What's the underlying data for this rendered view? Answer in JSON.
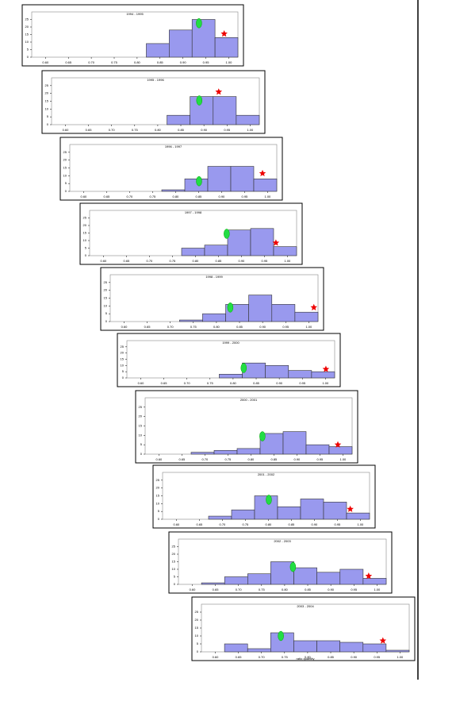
{
  "chart_data": [
    {
      "type": "histogram",
      "title": "1994 - 1995",
      "bins": [
        0.57,
        0.62,
        0.67,
        0.72,
        0.77,
        0.82,
        0.87,
        0.92,
        0.97,
        1.02
      ],
      "values": [
        0,
        0,
        0,
        0,
        0,
        9,
        18,
        25,
        13
      ],
      "color": "#9999ee",
      "xlim": [
        0.57,
        1.02
      ],
      "xticks": [
        {
          "value": 0.6,
          "label": "0.60"
        },
        {
          "value": 0.65,
          "label": "0.65"
        },
        {
          "value": 0.7,
          "label": "0.70"
        },
        {
          "value": 0.75,
          "label": "0.75"
        },
        {
          "value": 0.8,
          "label": "0.80"
        },
        {
          "value": 0.85,
          "label": "0.85"
        },
        {
          "value": 0.9,
          "label": "0.90"
        },
        {
          "value": 0.95,
          "label": "0.95"
        },
        {
          "value": 1,
          "label": "1.00"
        }
      ],
      "ylim": [
        0,
        30
      ],
      "yticks": [
        0,
        5,
        10,
        15,
        20,
        25
      ],
      "circle": [
        0.935,
        22.5
      ],
      "circle_color": "#22dd44",
      "star": [
        0.99,
        15.5
      ],
      "star_color": "#ee0000"
    },
    {
      "type": "histogram",
      "title": "1995 - 1996",
      "bins": [
        0.57,
        0.62,
        0.67,
        0.72,
        0.77,
        0.82,
        0.87,
        0.92,
        0.97,
        1.02
      ],
      "values": [
        0,
        0,
        0,
        0,
        0,
        6,
        18,
        18,
        6
      ],
      "color": "#9999ee",
      "xlim": [
        0.57,
        1.02
      ],
      "xticks": [
        {
          "value": 0.6,
          "label": "0.60"
        },
        {
          "value": 0.65,
          "label": "0.65"
        },
        {
          "value": 0.7,
          "label": "0.70"
        },
        {
          "value": 0.75,
          "label": "0.75"
        },
        {
          "value": 0.8,
          "label": "0.80"
        },
        {
          "value": 0.85,
          "label": "0.85"
        },
        {
          "value": 0.9,
          "label": "0.90"
        },
        {
          "value": 0.95,
          "label": "0.95"
        },
        {
          "value": 1,
          "label": "1.00"
        }
      ],
      "ylim": [
        0,
        30
      ],
      "yticks": [
        0,
        5,
        10,
        15,
        20,
        25
      ],
      "circle": [
        0.89,
        15.5
      ],
      "circle_color": "#22dd44",
      "star": [
        0.932,
        21
      ],
      "star_color": "#ee0000"
    },
    {
      "type": "histogram",
      "title": "1996 - 1997",
      "bins": [
        0.57,
        0.62,
        0.67,
        0.72,
        0.77,
        0.82,
        0.87,
        0.92,
        0.97,
        1.02
      ],
      "values": [
        0,
        0,
        0,
        0,
        1,
        8,
        16,
        16,
        8
      ],
      "color": "#9999ee",
      "xlim": [
        0.57,
        1.02
      ],
      "xticks": [
        {
          "value": 0.6,
          "label": "0.60"
        },
        {
          "value": 0.65,
          "label": "0.65"
        },
        {
          "value": 0.7,
          "label": "0.70"
        },
        {
          "value": 0.75,
          "label": "0.75"
        },
        {
          "value": 0.8,
          "label": "0.80"
        },
        {
          "value": 0.85,
          "label": "0.85"
        },
        {
          "value": 0.9,
          "label": "0.90"
        },
        {
          "value": 0.95,
          "label": "0.95"
        },
        {
          "value": 1,
          "label": "1.00"
        }
      ],
      "ylim": [
        0,
        30
      ],
      "yticks": [
        0,
        5,
        10,
        15,
        20,
        25
      ],
      "circle": [
        0.851,
        6.5
      ],
      "circle_color": "#22dd44",
      "star": [
        0.989,
        11.5
      ],
      "star_color": "#ee0000"
    },
    {
      "type": "histogram",
      "title": "1997 - 1998",
      "bins": [
        0.57,
        0.62,
        0.67,
        0.72,
        0.77,
        0.82,
        0.87,
        0.92,
        0.97,
        1.02
      ],
      "values": [
        0,
        0,
        0,
        0,
        5,
        7,
        17,
        18,
        6
      ],
      "color": "#9999ee",
      "xlim": [
        0.57,
        1.02
      ],
      "xticks": [
        {
          "value": 0.6,
          "label": "0.60"
        },
        {
          "value": 0.65,
          "label": "0.65"
        },
        {
          "value": 0.7,
          "label": "0.70"
        },
        {
          "value": 0.75,
          "label": "0.75"
        },
        {
          "value": 0.8,
          "label": "0.80"
        },
        {
          "value": 0.85,
          "label": "0.85"
        },
        {
          "value": 0.9,
          "label": "0.90"
        },
        {
          "value": 0.95,
          "label": "0.95"
        },
        {
          "value": 1,
          "label": "1.00"
        }
      ],
      "ylim": [
        0,
        30
      ],
      "yticks": [
        0,
        5,
        10,
        15,
        20,
        25
      ],
      "circle": [
        0.868,
        14.5
      ],
      "circle_color": "#22dd44",
      "star": [
        0.975,
        8.5
      ],
      "star_color": "#ee0000"
    },
    {
      "type": "histogram",
      "title": "1998 - 1999",
      "bins": [
        0.57,
        0.62,
        0.67,
        0.72,
        0.77,
        0.82,
        0.87,
        0.92,
        0.97,
        1.02
      ],
      "values": [
        0,
        0,
        0,
        1,
        5,
        11,
        17,
        11,
        6
      ],
      "color": "#9999ee",
      "xlim": [
        0.57,
        1.02
      ],
      "xticks": [
        {
          "value": 0.6,
          "label": "0.60"
        },
        {
          "value": 0.65,
          "label": "0.65"
        },
        {
          "value": 0.7,
          "label": "0.70"
        },
        {
          "value": 0.75,
          "label": "0.75"
        },
        {
          "value": 0.8,
          "label": "0.80"
        },
        {
          "value": 0.85,
          "label": "0.85"
        },
        {
          "value": 0.9,
          "label": "0.90"
        },
        {
          "value": 0.95,
          "label": "0.95"
        },
        {
          "value": 1,
          "label": "1.00"
        }
      ],
      "ylim": [
        0,
        30
      ],
      "yticks": [
        0,
        5,
        10,
        15,
        20,
        25
      ],
      "circle": [
        0.83,
        9
      ],
      "circle_color": "#22dd44",
      "star": [
        1.011,
        9
      ],
      "star_color": "#ee0000"
    },
    {
      "type": "histogram",
      "title": "1999 - 2000",
      "bins": [
        0.57,
        0.62,
        0.67,
        0.72,
        0.77,
        0.82,
        0.87,
        0.92,
        0.97,
        1.02
      ],
      "values": [
        0,
        0,
        0,
        0,
        3,
        12,
        10,
        6,
        5
      ],
      "color": "#9999ee",
      "xlim": [
        0.57,
        1.02
      ],
      "xticks": [
        {
          "value": 0.6,
          "label": "0.60"
        },
        {
          "value": 0.65,
          "label": "0.65"
        },
        {
          "value": 0.7,
          "label": "0.70"
        },
        {
          "value": 0.75,
          "label": "0.75"
        },
        {
          "value": 0.8,
          "label": "0.80"
        },
        {
          "value": 0.85,
          "label": "0.85"
        },
        {
          "value": 0.9,
          "label": "0.90"
        },
        {
          "value": 0.95,
          "label": "0.95"
        },
        {
          "value": 1,
          "label": "1.00"
        }
      ],
      "ylim": [
        0,
        30
      ],
      "yticks": [
        0,
        5,
        10,
        15,
        20,
        25
      ],
      "circle": [
        0.823,
        8
      ],
      "circle_color": "#22dd44",
      "star": [
        1.001,
        7
      ],
      "star_color": "#ee0000"
    },
    {
      "type": "histogram",
      "title": "2000 - 2001",
      "bins": [
        0.57,
        0.62,
        0.67,
        0.72,
        0.77,
        0.82,
        0.87,
        0.92,
        0.97,
        1.02
      ],
      "values": [
        0,
        0,
        1,
        2,
        3,
        11,
        12,
        5,
        4
      ],
      "color": "#9999ee",
      "xlim": [
        0.57,
        1.02
      ],
      "xticks": [
        {
          "value": 0.6,
          "label": "0.60"
        },
        {
          "value": 0.65,
          "label": "0.65"
        },
        {
          "value": 0.7,
          "label": "0.70"
        },
        {
          "value": 0.75,
          "label": "0.75"
        },
        {
          "value": 0.8,
          "label": "0.80"
        },
        {
          "value": 0.85,
          "label": "0.85"
        },
        {
          "value": 0.9,
          "label": "0.90"
        },
        {
          "value": 0.95,
          "label": "0.95"
        },
        {
          "value": 1,
          "label": "1.00"
        }
      ],
      "ylim": [
        0,
        30
      ],
      "yticks": [
        0,
        5,
        10,
        15,
        20,
        25
      ],
      "circle": [
        0.825,
        9.5
      ],
      "circle_color": "#22dd44",
      "star": [
        0.989,
        5
      ],
      "star_color": "#ee0000"
    },
    {
      "type": "histogram",
      "title": "2001 - 2002",
      "bins": [
        0.57,
        0.62,
        0.67,
        0.72,
        0.77,
        0.82,
        0.87,
        0.92,
        0.97,
        1.02
      ],
      "values": [
        0,
        0,
        2,
        6,
        15,
        8,
        13,
        11,
        4
      ],
      "color": "#9999ee",
      "xlim": [
        0.57,
        1.02
      ],
      "xticks": [
        {
          "value": 0.6,
          "label": "0.60"
        },
        {
          "value": 0.65,
          "label": "0.65"
        },
        {
          "value": 0.7,
          "label": "0.70"
        },
        {
          "value": 0.75,
          "label": "0.75"
        },
        {
          "value": 0.8,
          "label": "0.80"
        },
        {
          "value": 0.85,
          "label": "0.85"
        },
        {
          "value": 0.9,
          "label": "0.90"
        },
        {
          "value": 0.95,
          "label": "0.95"
        },
        {
          "value": 1,
          "label": "1.00"
        }
      ],
      "ylim": [
        0,
        30
      ],
      "yticks": [
        0,
        5,
        10,
        15,
        20,
        25
      ],
      "circle": [
        0.801,
        12.5
      ],
      "circle_color": "#22dd44",
      "star": [
        0.978,
        6.5
      ],
      "star_color": "#ee0000"
    },
    {
      "type": "histogram",
      "title": "2002 - 2003",
      "bins": [
        0.57,
        0.62,
        0.67,
        0.72,
        0.77,
        0.82,
        0.87,
        0.92,
        0.97,
        1.02
      ],
      "values": [
        0,
        1,
        5,
        7,
        15,
        11,
        8,
        10,
        4
      ],
      "color": "#9999ee",
      "xlim": [
        0.57,
        1.02
      ],
      "xticks": [
        {
          "value": 0.6,
          "label": "0.60"
        },
        {
          "value": 0.65,
          "label": "0.65"
        },
        {
          "value": 0.7,
          "label": "0.70"
        },
        {
          "value": 0.75,
          "label": "0.75"
        },
        {
          "value": 0.8,
          "label": "0.80"
        },
        {
          "value": 0.85,
          "label": "0.85"
        },
        {
          "value": 0.9,
          "label": "0.90"
        },
        {
          "value": 0.95,
          "label": "0.95"
        },
        {
          "value": 1,
          "label": "1.00"
        }
      ],
      "ylim": [
        0,
        30
      ],
      "yticks": [
        0,
        5,
        10,
        15,
        20,
        25
      ],
      "circle": [
        0.818,
        11.5
      ],
      "circle_color": "#22dd44",
      "star": [
        0.982,
        5.5
      ],
      "star_color": "#ee0000"
    },
    {
      "type": "histogram",
      "title": "2003 - 2004",
      "bins": [
        0.57,
        0.62,
        0.67,
        0.72,
        0.77,
        0.82,
        0.87,
        0.92,
        0.97,
        1.02
      ],
      "values": [
        0,
        5,
        2,
        12,
        7,
        7,
        6,
        5,
        1
      ],
      "color": "#9999ee",
      "xlim": [
        0.57,
        1.02
      ],
      "xticks": [
        {
          "value": 0.6,
          "label": "0.60"
        },
        {
          "value": 0.65,
          "label": "0.65"
        },
        {
          "value": 0.7,
          "label": "0.70"
        },
        {
          "value": 0.75,
          "label": "0.75"
        },
        {
          "value": 0.8,
          "label": "0.80"
        },
        {
          "value": 0.85,
          "label": "0.85"
        },
        {
          "value": 0.9,
          "label": "0.90"
        },
        {
          "value": 0.95,
          "label": "0.95"
        },
        {
          "value": 1,
          "label": "1.00"
        }
      ],
      "ylim": [
        0,
        30
      ],
      "yticks": [
        0,
        5,
        10,
        15,
        20,
        25
      ],
      "circle": [
        0.742,
        10
      ],
      "circle_color": "#22dd44",
      "star": [
        0.963,
        7
      ],
      "star_color": "#ee0000",
      "xlabel": "ratio quantity"
    }
  ]
}
